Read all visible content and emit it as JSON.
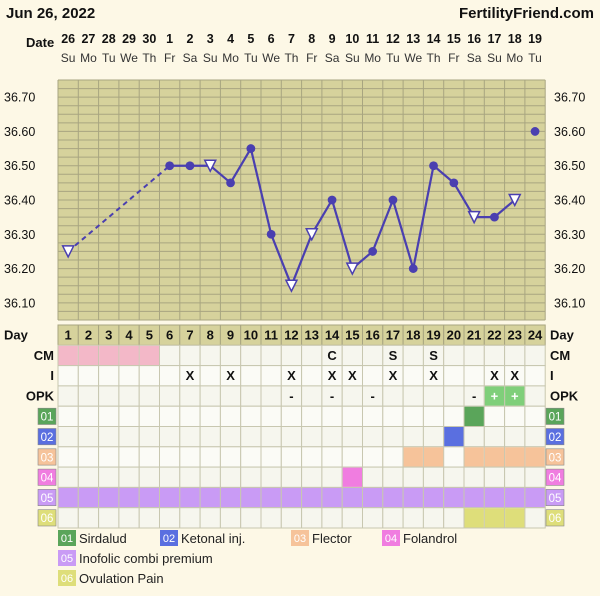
{
  "header": {
    "date": "Jun 26, 2022",
    "brand": "FertilityFriend.com",
    "date_row_label": "Date",
    "day_row_label": "Day"
  },
  "days": [
    {
      "cycle_day": "1",
      "date": "26",
      "weekday": "Su"
    },
    {
      "cycle_day": "2",
      "date": "27",
      "weekday": "Mo"
    },
    {
      "cycle_day": "3",
      "date": "28",
      "weekday": "Tu"
    },
    {
      "cycle_day": "4",
      "date": "29",
      "weekday": "We"
    },
    {
      "cycle_day": "5",
      "date": "30",
      "weekday": "Th"
    },
    {
      "cycle_day": "6",
      "date": "1",
      "weekday": "Fr"
    },
    {
      "cycle_day": "7",
      "date": "2",
      "weekday": "Sa"
    },
    {
      "cycle_day": "8",
      "date": "3",
      "weekday": "Su"
    },
    {
      "cycle_day": "9",
      "date": "4",
      "weekday": "Mo"
    },
    {
      "cycle_day": "10",
      "date": "5",
      "weekday": "Tu"
    },
    {
      "cycle_day": "11",
      "date": "6",
      "weekday": "We"
    },
    {
      "cycle_day": "12",
      "date": "7",
      "weekday": "Th"
    },
    {
      "cycle_day": "13",
      "date": "8",
      "weekday": "Fr"
    },
    {
      "cycle_day": "14",
      "date": "9",
      "weekday": "Sa"
    },
    {
      "cycle_day": "15",
      "date": "10",
      "weekday": "Su"
    },
    {
      "cycle_day": "16",
      "date": "11",
      "weekday": "Mo"
    },
    {
      "cycle_day": "17",
      "date": "12",
      "weekday": "Tu"
    },
    {
      "cycle_day": "18",
      "date": "13",
      "weekday": "We"
    },
    {
      "cycle_day": "19",
      "date": "14",
      "weekday": "Th"
    },
    {
      "cycle_day": "20",
      "date": "15",
      "weekday": "Fr"
    },
    {
      "cycle_day": "21",
      "date": "16",
      "weekday": "Sa"
    },
    {
      "cycle_day": "22",
      "date": "17",
      "weekday": "Su"
    },
    {
      "cycle_day": "23",
      "date": "18",
      "weekday": "Mo"
    },
    {
      "cycle_day": "24",
      "date": "19",
      "weekday": "Tu"
    }
  ],
  "chart_data": {
    "type": "line",
    "ylim": [
      36.05,
      36.75
    ],
    "y_ticks": [
      "36.10",
      "36.20",
      "36.30",
      "36.40",
      "36.50",
      "36.60",
      "36.70"
    ],
    "temperatures": [
      {
        "day": 1,
        "value": 36.25,
        "marker": "hollow-triangle"
      },
      {
        "day": 6,
        "value": 36.5,
        "marker": "dot"
      },
      {
        "day": 7,
        "value": 36.5,
        "marker": "dot"
      },
      {
        "day": 8,
        "value": 36.5,
        "marker": "hollow-triangle"
      },
      {
        "day": 9,
        "value": 36.45,
        "marker": "dot"
      },
      {
        "day": 10,
        "value": 36.55,
        "marker": "dot"
      },
      {
        "day": 11,
        "value": 36.3,
        "marker": "dot"
      },
      {
        "day": 12,
        "value": 36.15,
        "marker": "hollow-triangle"
      },
      {
        "day": 13,
        "value": 36.3,
        "marker": "hollow-triangle"
      },
      {
        "day": 14,
        "value": 36.4,
        "marker": "dot"
      },
      {
        "day": 15,
        "value": 36.2,
        "marker": "hollow-triangle"
      },
      {
        "day": 16,
        "value": 36.25,
        "marker": "dot"
      },
      {
        "day": 17,
        "value": 36.4,
        "marker": "dot"
      },
      {
        "day": 18,
        "value": 36.2,
        "marker": "dot"
      },
      {
        "day": 19,
        "value": 36.5,
        "marker": "dot"
      },
      {
        "day": 20,
        "value": 36.45,
        "marker": "dot"
      },
      {
        "day": 21,
        "value": 36.35,
        "marker": "hollow-triangle"
      },
      {
        "day": 22,
        "value": 36.35,
        "marker": "dot"
      },
      {
        "day": 23,
        "value": 36.4,
        "marker": "hollow-triangle"
      },
      {
        "day": 24,
        "value": 36.6,
        "marker": "dot"
      }
    ],
    "segments": [
      {
        "from": 1,
        "to": 6,
        "style": "dashed"
      },
      {
        "from": 6,
        "to": 23,
        "style": "solid"
      }
    ],
    "line_color": "#4a3fb0"
  },
  "rows": [
    {
      "label": "CM",
      "entries": [
        {
          "day": 1,
          "fill": "#f3b8c8"
        },
        {
          "day": 2,
          "fill": "#f3b8c8"
        },
        {
          "day": 3,
          "fill": "#f3b8c8"
        },
        {
          "day": 4,
          "fill": "#f3b8c8"
        },
        {
          "day": 5,
          "fill": "#f3b8c8"
        },
        {
          "day": 14,
          "text": "C"
        },
        {
          "day": 17,
          "text": "S"
        },
        {
          "day": 19,
          "text": "S"
        }
      ]
    },
    {
      "label": "I",
      "entries": [
        {
          "day": 7,
          "text": "X"
        },
        {
          "day": 9,
          "text": "X"
        },
        {
          "day": 12,
          "text": "X"
        },
        {
          "day": 14,
          "text": "X"
        },
        {
          "day": 15,
          "text": "X"
        },
        {
          "day": 17,
          "text": "X"
        },
        {
          "day": 19,
          "text": "X"
        },
        {
          "day": 22,
          "text": "X"
        },
        {
          "day": 23,
          "text": "X"
        }
      ]
    },
    {
      "label": "OPK",
      "entries": [
        {
          "day": 12,
          "text": "-"
        },
        {
          "day": 14,
          "text": "-"
        },
        {
          "day": 16,
          "text": "-"
        },
        {
          "day": 21,
          "text": "-"
        },
        {
          "day": 22,
          "text": "+",
          "fill": "#7fcf7a"
        },
        {
          "day": 23,
          "text": "+",
          "fill": "#7fcf7a"
        }
      ]
    },
    {
      "label": "01",
      "badge": "#5aa55a",
      "entries": [
        {
          "day": 21,
          "fill": "#5aa55a"
        }
      ]
    },
    {
      "label": "02",
      "badge": "#5a6fe0",
      "entries": [
        {
          "day": 20,
          "fill": "#5a6fe0"
        }
      ]
    },
    {
      "label": "03",
      "badge": "#f6c39a",
      "entries": [
        {
          "day": 18,
          "fill": "#f6c39a"
        },
        {
          "day": 19,
          "fill": "#f6c39a"
        },
        {
          "day": 21,
          "fill": "#f6c39a"
        },
        {
          "day": 22,
          "fill": "#f6c39a"
        },
        {
          "day": 23,
          "fill": "#f6c39a"
        },
        {
          "day": 24,
          "fill": "#f6c39a"
        }
      ]
    },
    {
      "label": "04",
      "badge": "#f07de0",
      "entries": [
        {
          "day": 15,
          "fill": "#f07de0"
        }
      ]
    },
    {
      "label": "05",
      "badge": "#c99bf5",
      "full_fill": "#c99bf5",
      "entries": []
    },
    {
      "label": "06",
      "badge": "#dede7a",
      "entries": [
        {
          "day": 21,
          "fill": "#dede7a"
        },
        {
          "day": 22,
          "fill": "#dede7a"
        },
        {
          "day": 23,
          "fill": "#dede7a"
        }
      ]
    }
  ],
  "legend": [
    {
      "code": "01",
      "name": "Sirdalud",
      "color": "#5aa55a"
    },
    {
      "code": "02",
      "name": "Ketonal inj.",
      "color": "#5a6fe0"
    },
    {
      "code": "03",
      "name": "Flector",
      "color": "#f6c39a"
    },
    {
      "code": "04",
      "name": "Folandrol",
      "color": "#f07de0"
    },
    {
      "code": "05",
      "name": "Inofolic combi premium",
      "color": "#c99bf5"
    },
    {
      "code": "06",
      "name": "Ovulation Pain",
      "color": "#dede7a"
    }
  ]
}
